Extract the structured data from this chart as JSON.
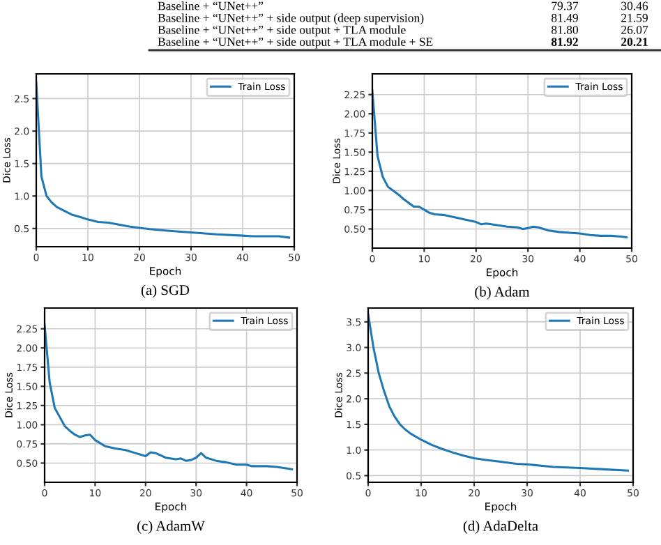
{
  "chart_data": [
    {
      "type": "other",
      "annotations": [
        "Baseline + “UNet++”",
        "79.37",
        "30.46",
        "Baseline + “UNet++” + side output (deep supervision)",
        "81.49",
        "21.59",
        "Baseline + “UNet++” + side output + TLA module",
        "81.80",
        "26.07",
        "Baseline + “UNet++” + side output + TLA module + SE",
        "81.92",
        "20.21"
      ]
    },
    {
      "type": "line",
      "xlabel": "Epoch",
      "ylabel": "Dice Loss",
      "annotations": [
        "(a) SGD"
      ],
      "legend": "top right",
      "grid": true,
      "xlim": [
        0,
        50
      ],
      "xticks": [
        0,
        10,
        20,
        30,
        40,
        50
      ],
      "ylim": [
        0.22,
        2.88
      ],
      "yticks": [
        0.5,
        {
          "value": 1,
          "label": "1.0"
        },
        1.5,
        {
          "value": 2,
          "label": "2.0"
        },
        2.5
      ],
      "x": [
        0,
        1,
        2,
        3,
        4,
        5,
        6,
        7,
        8,
        10,
        12,
        14,
        16,
        18,
        20,
        22,
        25,
        28,
        30,
        35,
        40,
        42,
        45,
        47,
        49
      ],
      "series": [
        {
          "name": "Train Loss",
          "color": "#1f77b4",
          "values": [
            2.75,
            1.3,
            1.0,
            0.9,
            0.83,
            0.79,
            0.75,
            0.71,
            0.69,
            0.64,
            0.6,
            0.59,
            0.56,
            0.53,
            0.51,
            0.49,
            0.47,
            0.45,
            0.44,
            0.41,
            0.39,
            0.38,
            0.38,
            0.38,
            0.36
          ]
        }
      ]
    },
    {
      "type": "line",
      "xlabel": "Epoch",
      "ylabel": "Dice Loss",
      "annotations": [
        "(b) Adam"
      ],
      "legend": "top right",
      "grid": true,
      "xlim": [
        0,
        50
      ],
      "xticks": [
        0,
        10,
        20,
        30,
        40,
        50
      ],
      "ylim": [
        0.25,
        2.52
      ],
      "yticks": [
        {
          "value": 0.5,
          "label": "0.50"
        },
        {
          "value": 0.75,
          "label": "0.75"
        },
        {
          "value": 1.0,
          "label": "1.00"
        },
        {
          "value": 1.25,
          "label": "1.25"
        },
        {
          "value": 1.5,
          "label": "1.50"
        },
        {
          "value": 1.75,
          "label": "1.75"
        },
        {
          "value": 2.0,
          "label": "2.00"
        },
        {
          "value": 2.25,
          "label": "2.25"
        }
      ],
      "x": [
        0,
        1,
        2,
        3,
        4,
        5,
        6,
        7,
        8,
        9,
        10,
        11,
        12,
        14,
        16,
        18,
        20,
        21,
        22,
        24,
        26,
        28,
        29,
        30,
        31,
        32,
        34,
        36,
        38,
        40,
        42,
        44,
        46,
        48,
        49
      ],
      "series": [
        {
          "name": "Train Loss",
          "color": "#1f77b4",
          "values": [
            2.3,
            1.45,
            1.18,
            1.05,
            1.0,
            0.95,
            0.89,
            0.84,
            0.79,
            0.79,
            0.75,
            0.71,
            0.69,
            0.68,
            0.65,
            0.62,
            0.59,
            0.56,
            0.57,
            0.55,
            0.53,
            0.52,
            0.5,
            0.51,
            0.53,
            0.52,
            0.48,
            0.46,
            0.45,
            0.44,
            0.42,
            0.41,
            0.41,
            0.4,
            0.39
          ]
        }
      ]
    },
    {
      "type": "line",
      "xlabel": "Epoch",
      "ylabel": "Dice Loss",
      "annotations": [
        "(c) AdamW"
      ],
      "legend": "top right",
      "grid": true,
      "xlim": [
        0,
        50
      ],
      "xticks": [
        0,
        10,
        20,
        30,
        40,
        50
      ],
      "ylim": [
        0.25,
        2.52
      ],
      "yticks": [
        {
          "value": 0.5,
          "label": "0.50"
        },
        {
          "value": 0.75,
          "label": "0.75"
        },
        {
          "value": 1.0,
          "label": "1.00"
        },
        {
          "value": 1.25,
          "label": "1.25"
        },
        {
          "value": 1.5,
          "label": "1.50"
        },
        {
          "value": 1.75,
          "label": "1.75"
        },
        {
          "value": 2.0,
          "label": "2.00"
        },
        {
          "value": 2.25,
          "label": "2.25"
        }
      ],
      "x": [
        0,
        1,
        2,
        3,
        4,
        5,
        6,
        7,
        8,
        9,
        10,
        11,
        12,
        14,
        16,
        18,
        20,
        21,
        22,
        23,
        24,
        26,
        27,
        28,
        29,
        30,
        31,
        32,
        34,
        36,
        38,
        40,
        41,
        44,
        46,
        49
      ],
      "series": [
        {
          "name": "Train Loss",
          "color": "#1f77b4",
          "values": [
            2.3,
            1.55,
            1.22,
            1.1,
            0.98,
            0.92,
            0.87,
            0.84,
            0.86,
            0.87,
            0.8,
            0.76,
            0.72,
            0.69,
            0.67,
            0.63,
            0.59,
            0.64,
            0.63,
            0.6,
            0.57,
            0.55,
            0.56,
            0.53,
            0.54,
            0.57,
            0.63,
            0.57,
            0.53,
            0.51,
            0.48,
            0.48,
            0.46,
            0.46,
            0.45,
            0.42
          ]
        }
      ]
    },
    {
      "type": "line",
      "xlabel": "Epoch",
      "ylabel": "Dice Loss",
      "annotations": [
        "(d) AdaDelta"
      ],
      "legend": "top right",
      "grid": true,
      "xlim": [
        0,
        50
      ],
      "xticks": [
        0,
        10,
        20,
        30,
        40,
        50
      ],
      "ylim": [
        0.37,
        3.77
      ],
      "yticks": [
        0.5,
        {
          "value": 1,
          "label": "1.0"
        },
        1.5,
        {
          "value": 2,
          "label": "2.0"
        },
        2.5,
        {
          "value": 3,
          "label": "3.0"
        },
        3.5
      ],
      "x": [
        0,
        1,
        2,
        3,
        4,
        5,
        6,
        7,
        8,
        10,
        12,
        14,
        16,
        18,
        20,
        22,
        25,
        28,
        30,
        35,
        40,
        45,
        49
      ],
      "series": [
        {
          "name": "Train Loss",
          "color": "#1f77b4",
          "values": [
            3.65,
            3.0,
            2.5,
            2.15,
            1.85,
            1.65,
            1.5,
            1.4,
            1.32,
            1.2,
            1.1,
            1.02,
            0.95,
            0.89,
            0.84,
            0.81,
            0.77,
            0.73,
            0.72,
            0.67,
            0.65,
            0.62,
            0.6
          ]
        }
      ]
    }
  ]
}
